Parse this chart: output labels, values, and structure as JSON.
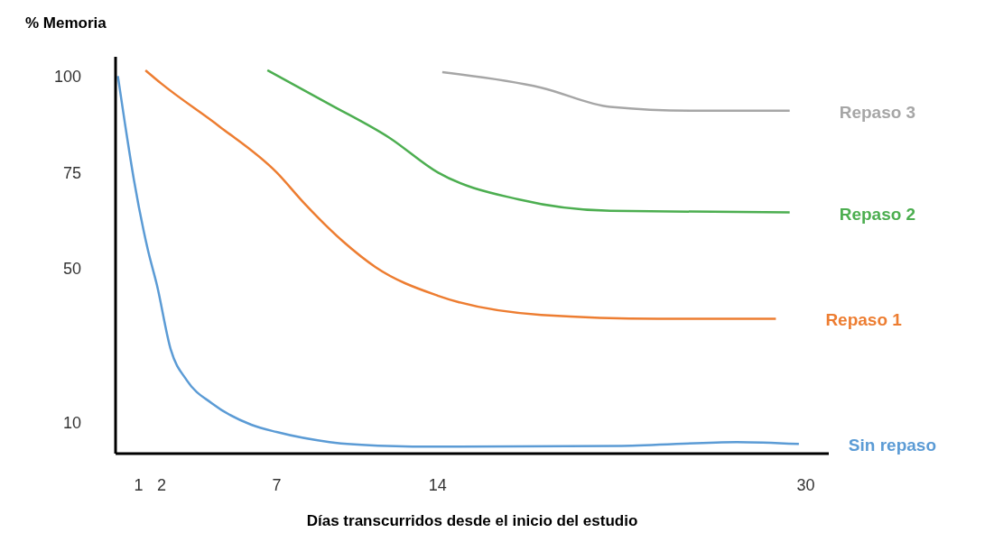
{
  "chart_data": {
    "type": "line",
    "ylabel": "% Memoria",
    "xlabel": "Días transcurridos desde el inicio del estudio",
    "xlim": [
      0,
      31
    ],
    "xticks": [
      1,
      2,
      7,
      14,
      30
    ],
    "ylim": [
      2,
      105
    ],
    "yticks": [
      10,
      50,
      75,
      100
    ],
    "marker": "none",
    "line_style": "solid",
    "series": [
      {
        "name": "Repaso 3",
        "color": "#a6a6a6",
        "x": [
          14.2,
          18.5,
          21.5,
          25,
          29.3
        ],
        "values": [
          101,
          97,
          92,
          91,
          91
        ]
      },
      {
        "name": "Repaso 2",
        "color": "#4cae50",
        "x": [
          6.6,
          9.3,
          11.9,
          14,
          17.5,
          21.5,
          29.3
        ],
        "values": [
          101.5,
          92.7,
          84,
          75,
          68,
          65,
          64.6
        ]
      },
      {
        "name": "Repaso 1",
        "color": "#ed7d31",
        "x": [
          1.3,
          2,
          4.5,
          7,
          8.2,
          9.9,
          11.3,
          14,
          18.5,
          23.6,
          28.7
        ],
        "values": [
          101.5,
          98,
          87,
          75,
          67,
          57,
          50.4,
          43,
          38,
          37,
          37
        ]
      },
      {
        "name": "Sin repaso",
        "color": "#5b9bd5",
        "x": [
          0.1,
          0.4,
          0.8,
          1.4,
          1.8,
          2.4,
          3.1,
          4.2,
          5.9,
          7,
          9.3,
          11.8,
          14,
          22,
          27,
          29.7
        ],
        "values": [
          100,
          88,
          73,
          55,
          45.7,
          29,
          21,
          15,
          9.5,
          7.6,
          5,
          4,
          3.8,
          4,
          5,
          4.5
        ]
      }
    ]
  }
}
